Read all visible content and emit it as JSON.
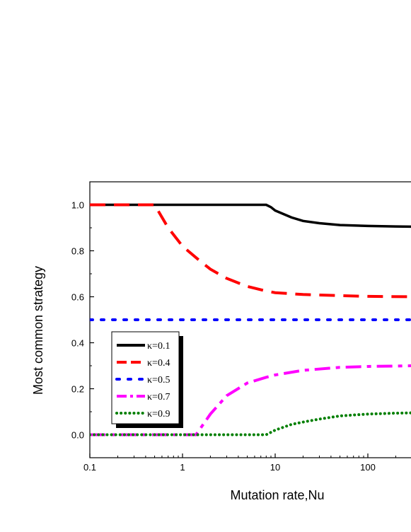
{
  "chart_data": {
    "type": "line",
    "xlabel": "Mutation rate,Nu",
    "ylabel": "Most common strategy",
    "xscale": "log",
    "xlim": [
      0.1,
      300
    ],
    "ylim": [
      -0.1,
      1.1
    ],
    "x_ticks": [
      {
        "value": 0.1,
        "label": "0.1"
      },
      {
        "value": 1,
        "label": "1"
      },
      {
        "value": 10,
        "label": "10"
      },
      {
        "value": 100,
        "label": "100"
      }
    ],
    "y_ticks": [
      {
        "value": 0.0,
        "label": "0.0"
      },
      {
        "value": 0.2,
        "label": "0.2"
      },
      {
        "value": 0.4,
        "label": "0.4"
      },
      {
        "value": 0.6,
        "label": "0.6"
      },
      {
        "value": 0.8,
        "label": "0.8"
      },
      {
        "value": 1.0,
        "label": "1.0"
      }
    ],
    "grid": false,
    "legend_position": "lower-left",
    "series": [
      {
        "name": "κ=0.1",
        "color": "#000000",
        "style": "solid",
        "x": [
          0.1,
          1,
          5,
          8,
          9,
          10,
          15,
          20,
          30,
          50,
          100,
          200,
          300
        ],
        "y": [
          1.0,
          1.0,
          1.0,
          1.0,
          0.99,
          0.975,
          0.945,
          0.93,
          0.92,
          0.912,
          0.908,
          0.906,
          0.905
        ]
      },
      {
        "name": "κ=0.4",
        "color": "#ff0000",
        "style": "dash",
        "x": [
          0.1,
          0.3,
          0.5,
          0.7,
          1,
          1.5,
          2,
          3,
          5,
          8,
          10,
          20,
          50,
          100,
          300
        ],
        "y": [
          1.0,
          1.0,
          1.0,
          0.9,
          0.82,
          0.76,
          0.72,
          0.68,
          0.645,
          0.625,
          0.618,
          0.61,
          0.605,
          0.602,
          0.6
        ]
      },
      {
        "name": "κ=0.5",
        "color": "#0000ff",
        "style": "dot",
        "x": [
          0.1,
          300
        ],
        "y": [
          0.5,
          0.5
        ]
      },
      {
        "name": "κ=0.7",
        "color": "#ff00ff",
        "style": "dashdot",
        "x": [
          0.1,
          1,
          1.4,
          2,
          3,
          5,
          8,
          10,
          20,
          50,
          100,
          300
        ],
        "y": [
          0.0,
          0.0,
          0.0,
          0.09,
          0.17,
          0.225,
          0.25,
          0.26,
          0.28,
          0.293,
          0.297,
          0.3
        ]
      },
      {
        "name": "κ=0.9",
        "color": "#007f00",
        "style": "dot",
        "x": [
          0.1,
          1,
          5,
          8,
          10,
          15,
          20,
          30,
          50,
          100,
          200,
          300
        ],
        "y": [
          0.0,
          0.0,
          0.0,
          0.0,
          0.02,
          0.045,
          0.055,
          0.068,
          0.082,
          0.09,
          0.094,
          0.095
        ]
      }
    ]
  }
}
